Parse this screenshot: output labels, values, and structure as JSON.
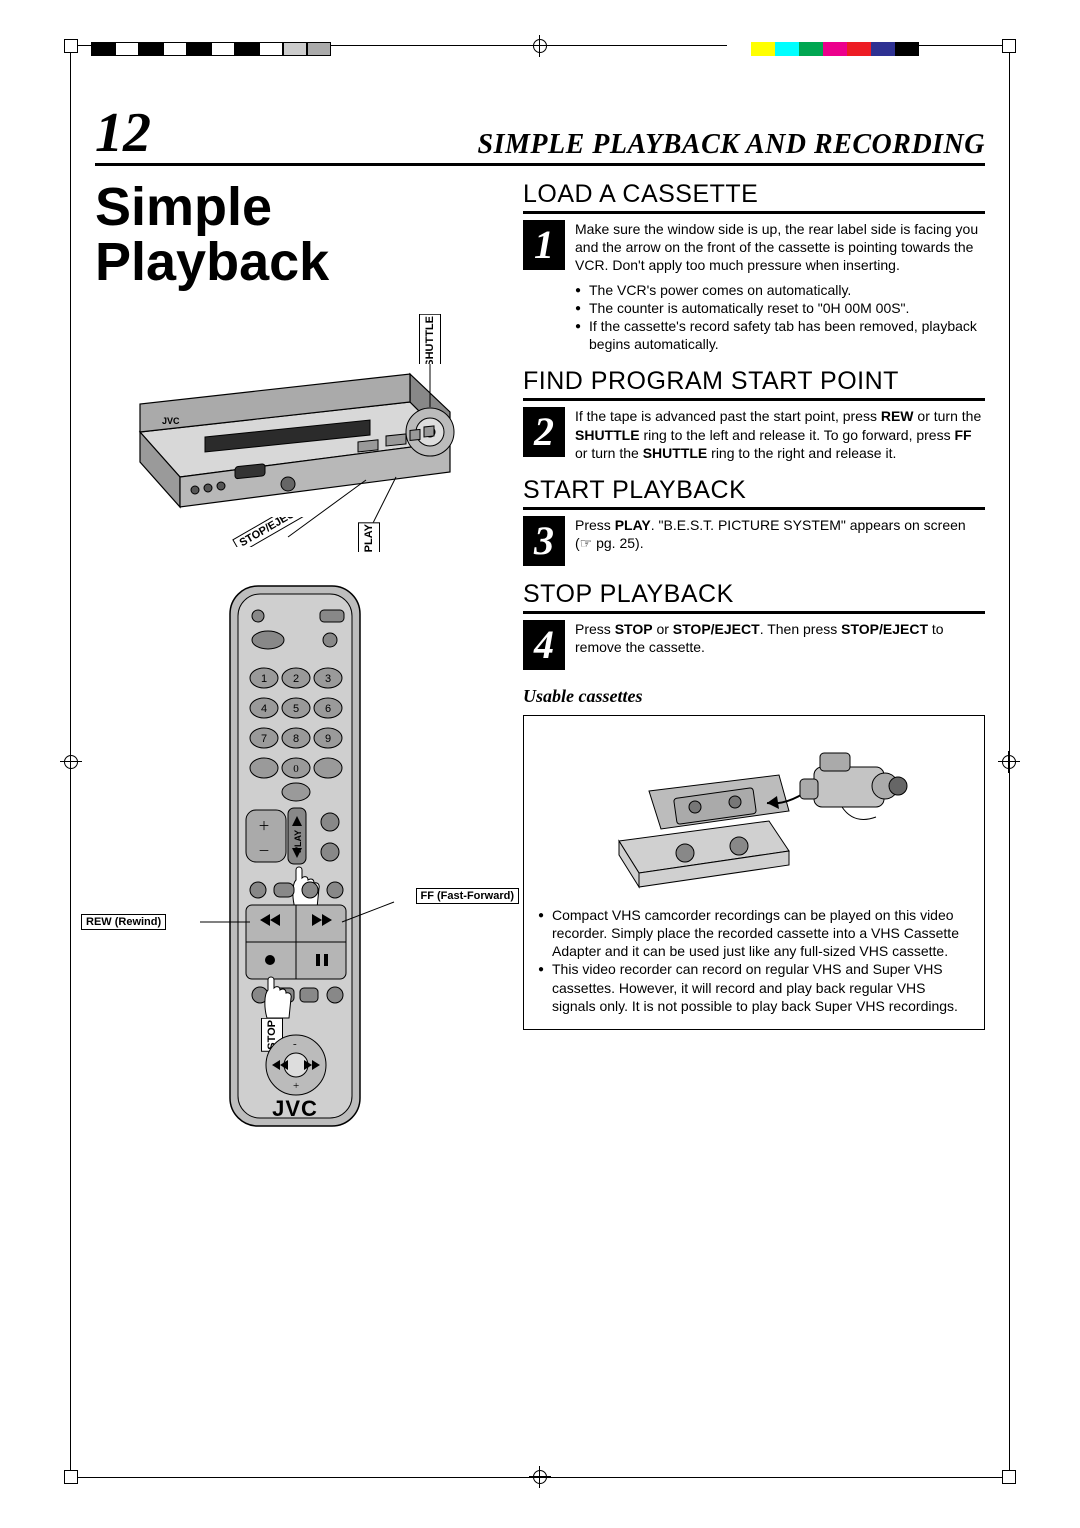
{
  "page_number": "12",
  "section_title": "SIMPLE PLAYBACK AND RECORDING",
  "main_title": "Simple Playback",
  "brand": "JVC",
  "vcr_callouts": {
    "shuttle": "SHUTTLE",
    "stop_eject": "STOP/EJECT",
    "play": "PLAY"
  },
  "remote_callouts": {
    "rew": "REW (Rewind)",
    "ff": "FF (Fast-Forward)",
    "play": "PLAY",
    "stop": "STOP"
  },
  "steps": [
    {
      "num": "1",
      "title": "LOAD A CASSETTE",
      "text_html": "Make sure the window side is up, the rear label side is facing you and the arrow on the front of the cassette is pointing towards the VCR. Don't apply too much pressure when inserting.",
      "bullets": [
        "The VCR's power comes on automatically.",
        "The counter is automatically reset to \"0H 00M 00S\".",
        "If the cassette's record safety tab has been removed, playback begins automatically."
      ]
    },
    {
      "num": "2",
      "title": "FIND PROGRAM START POINT",
      "text_html": "If the tape is advanced past the start point, press <b>REW</b> or turn the <b>SHUTTLE</b> ring to the left and release it. To go forward, press <b>FF</b> or turn the <b>SHUTTLE</b> ring to the right and release it.",
      "bullets": []
    },
    {
      "num": "3",
      "title": "START PLAYBACK",
      "text_html": "Press <b>PLAY</b>. \"B.E.S.T. PICTURE SYSTEM\" appears on screen (☞ pg. 25).",
      "bullets": []
    },
    {
      "num": "4",
      "title": "STOP PLAYBACK",
      "text_html": "Press <b>STOP</b> or <b>STOP/EJECT</b>. Then press <b>STOP/EJECT</b> to remove the cassette.",
      "bullets": []
    }
  ],
  "usable": {
    "heading": "Usable cassettes",
    "bullets": [
      "Compact VHS camcorder recordings can be played on this video recorder. Simply place the recorded cassette into a VHS Cassette Adapter and it can be used just like any full-sized VHS cassette.",
      "This video recorder can record on regular VHS and Super VHS cassettes. However, it will record and play back regular VHS signals only. It is not possible to play back Super VHS recordings."
    ]
  },
  "color_bars": {
    "left": [
      "#000",
      "#fff",
      "#000",
      "#fff",
      "#000",
      "#fff",
      "#000",
      "#fff",
      "#ccc",
      "#aaa"
    ],
    "right": [
      "#fff",
      "#ffff00",
      "#00ffff",
      "#00a651",
      "#ec008c",
      "#ed1c24",
      "#2e3192",
      "#000"
    ]
  }
}
